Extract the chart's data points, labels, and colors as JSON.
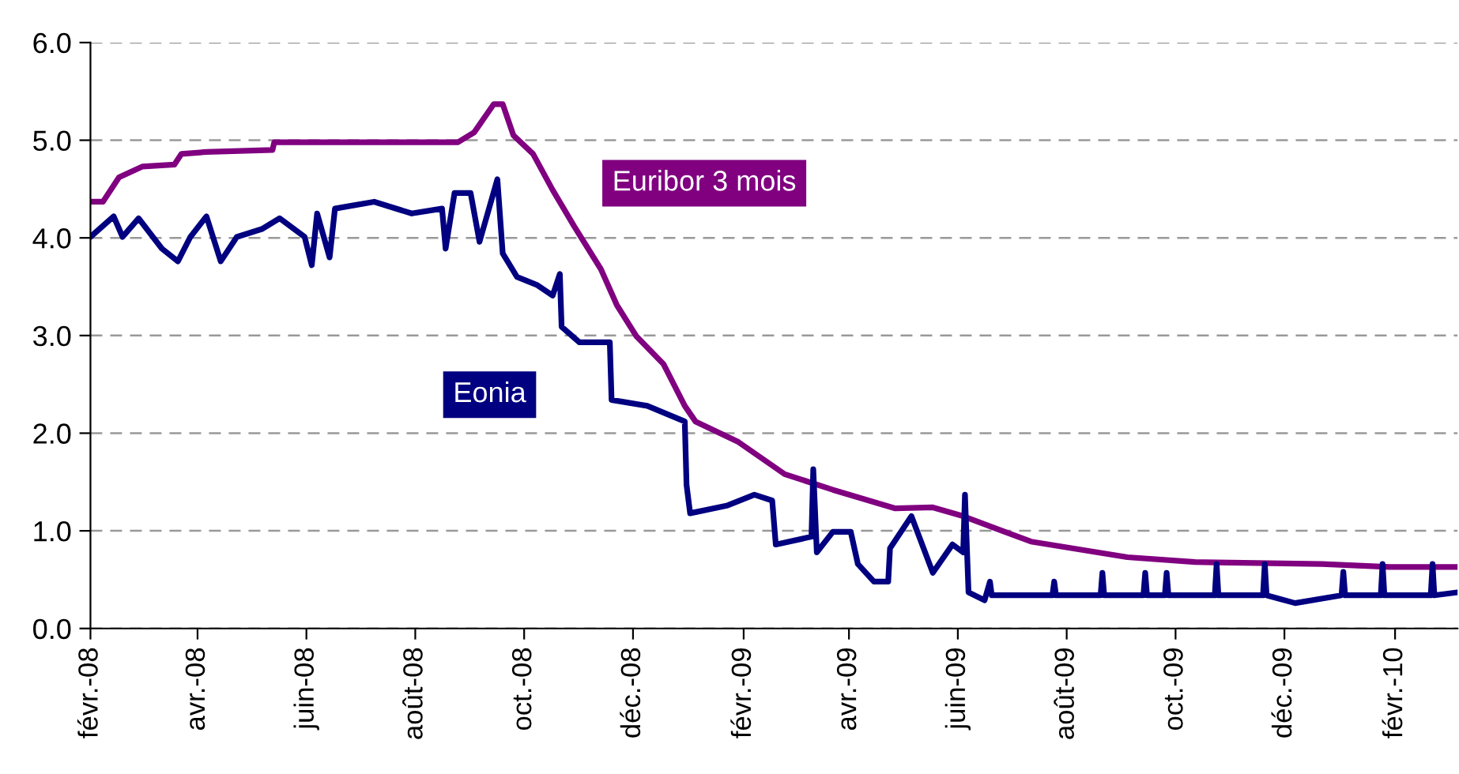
{
  "chart_data": {
    "type": "line",
    "xlim": [
      "2008-02-01",
      "2010-03-08"
    ],
    "xticks": [
      {
        "value": "2008-02-01",
        "label": "févr.-08"
      },
      {
        "value": "2008-04-01",
        "label": "avr.-08"
      },
      {
        "value": "2008-06-01",
        "label": "juin-08"
      },
      {
        "value": "2008-08-01",
        "label": "août-08"
      },
      {
        "value": "2008-10-01",
        "label": "oct.-08"
      },
      {
        "value": "2008-12-01",
        "label": "déc.-08"
      },
      {
        "value": "2009-02-01",
        "label": "févr.-09"
      },
      {
        "value": "2009-04-01",
        "label": "avr.-09"
      },
      {
        "value": "2009-06-01",
        "label": "juin-09"
      },
      {
        "value": "2009-08-01",
        "label": "août-09"
      },
      {
        "value": "2009-10-01",
        "label": "oct.-09"
      },
      {
        "value": "2009-12-01",
        "label": "déc.-09"
      },
      {
        "value": "2010-02-01",
        "label": "févr.-10"
      }
    ],
    "ylim": [
      0,
      6
    ],
    "yticks": [
      {
        "value": 0,
        "label": "0.0"
      },
      {
        "value": 1,
        "label": "1.0"
      },
      {
        "value": 2,
        "label": "2.0"
      },
      {
        "value": 3,
        "label": "3.0"
      },
      {
        "value": 4,
        "label": "4.0"
      },
      {
        "value": 5,
        "label": "5.0"
      },
      {
        "value": 6,
        "label": "6.0"
      }
    ],
    "grid": "y",
    "legend": false,
    "marker": "none",
    "line_style": "solid",
    "series": [
      {
        "name": "Euribor 3 mois",
        "color": "#800080",
        "x": [
          "2008-02-01",
          "2008-02-08",
          "2008-02-17",
          "2008-03-01",
          "2008-03-19",
          "2008-03-23",
          "2008-04-06",
          "2008-05-13",
          "2008-05-14",
          "2008-08-25",
          "2008-09-03",
          "2008-09-14",
          "2008-09-19",
          "2008-09-25",
          "2008-10-06",
          "2008-10-17",
          "2008-10-29",
          "2008-11-13",
          "2008-11-22",
          "2008-12-03",
          "2008-12-18",
          "2008-12-30",
          "2009-01-05",
          "2009-01-29",
          "2009-02-24",
          "2009-03-23",
          "2009-04-27",
          "2009-05-18",
          "2009-06-04",
          "2009-07-12",
          "2009-09-04",
          "2009-10-12",
          "2009-12-22",
          "2010-01-29",
          "2010-03-08"
        ],
        "values": [
          4.37,
          4.37,
          4.62,
          4.73,
          4.75,
          4.86,
          4.88,
          4.9,
          4.98,
          4.98,
          5.08,
          5.37,
          5.37,
          5.05,
          4.86,
          4.49,
          4.12,
          3.68,
          3.31,
          2.99,
          2.71,
          2.28,
          2.12,
          1.91,
          1.58,
          1.42,
          1.23,
          1.24,
          1.15,
          0.89,
          0.73,
          0.68,
          0.66,
          0.63,
          0.63
        ]
      },
      {
        "name": "Eonia",
        "color": "#000080",
        "x": [
          "2008-02-01",
          "2008-02-14",
          "2008-02-19",
          "2008-02-28",
          "2008-03-12",
          "2008-03-21",
          "2008-03-28",
          "2008-04-06",
          "2008-04-14",
          "2008-04-23",
          "2008-05-07",
          "2008-05-17",
          "2008-05-31",
          "2008-06-04",
          "2008-06-07",
          "2008-06-14",
          "2008-06-17",
          "2008-07-09",
          "2008-07-30",
          "2008-08-16",
          "2008-08-18",
          "2008-08-23",
          "2008-09-01",
          "2008-09-06",
          "2008-09-16",
          "2008-09-19",
          "2008-09-27",
          "2008-10-08",
          "2008-10-17",
          "2008-10-21",
          "2008-10-22",
          "2008-11-01",
          "2008-11-18",
          "2008-11-19",
          "2008-12-09",
          "2008-12-30",
          "2008-12-31",
          "2009-01-02",
          "2009-01-23",
          "2009-02-07",
          "2009-02-17",
          "2009-02-19",
          "2009-03-11",
          "2009-03-12",
          "2009-03-14",
          "2009-03-23",
          "2009-04-02",
          "2009-04-06",
          "2009-04-15",
          "2009-04-23",
          "2009-04-24",
          "2009-05-06",
          "2009-05-18",
          "2009-05-29",
          "2009-06-04",
          "2009-06-05",
          "2009-06-07",
          "2009-06-16",
          "2009-06-19",
          "2009-06-20",
          "2009-07-24",
          "2009-07-25",
          "2009-07-26",
          "2009-08-20",
          "2009-08-21",
          "2009-08-22",
          "2009-09-13",
          "2009-09-14",
          "2009-09-15",
          "2009-09-25",
          "2009-09-26",
          "2009-09-27",
          "2009-10-23",
          "2009-10-24",
          "2009-10-25",
          "2009-11-19",
          "2009-11-20",
          "2009-11-21",
          "2009-12-07",
          "2010-01-02",
          "2010-01-03",
          "2010-01-04",
          "2010-01-24",
          "2010-01-25",
          "2010-01-26",
          "2010-02-21",
          "2010-02-22",
          "2010-02-23",
          "2010-03-08"
        ],
        "values": [
          4.01,
          4.22,
          4.01,
          4.2,
          3.89,
          3.76,
          4.01,
          4.22,
          3.76,
          4.01,
          4.09,
          4.2,
          4.01,
          3.72,
          4.25,
          3.8,
          4.3,
          4.37,
          4.25,
          4.3,
          3.89,
          4.46,
          4.46,
          3.96,
          4.6,
          3.84,
          3.6,
          3.52,
          3.41,
          3.63,
          3.09,
          2.93,
          2.93,
          2.34,
          2.28,
          2.12,
          1.47,
          1.18,
          1.26,
          1.37,
          1.31,
          0.86,
          0.94,
          1.63,
          0.78,
          0.99,
          0.99,
          0.66,
          0.48,
          0.48,
          0.82,
          1.15,
          0.57,
          0.86,
          0.78,
          1.37,
          0.37,
          0.29,
          0.48,
          0.34,
          0.34,
          0.48,
          0.34,
          0.34,
          0.57,
          0.34,
          0.34,
          0.57,
          0.34,
          0.34,
          0.57,
          0.34,
          0.34,
          0.66,
          0.34,
          0.34,
          0.66,
          0.34,
          0.26,
          0.34,
          0.58,
          0.34,
          0.34,
          0.66,
          0.34,
          0.34,
          0.66,
          0.34,
          0.37
        ]
      }
    ]
  }
}
